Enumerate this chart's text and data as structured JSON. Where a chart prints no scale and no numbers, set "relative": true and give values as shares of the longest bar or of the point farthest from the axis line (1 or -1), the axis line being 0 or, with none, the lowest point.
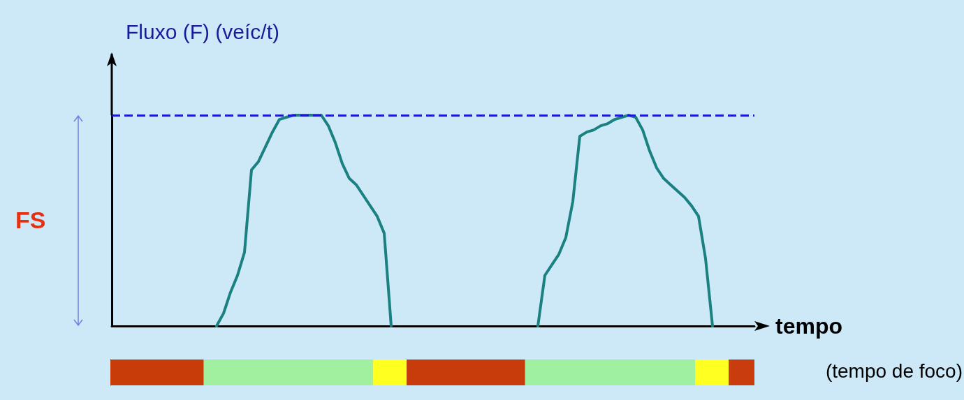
{
  "chart_data": [
    {
      "type": "line",
      "relative": true,
      "ylabel": "Fluxo (F) (veíc/t)",
      "xlabel": "tempo",
      "categories": [
        null,
        null,
        null,
        null,
        null,
        null,
        null,
        null,
        null,
        null,
        null,
        null,
        null,
        null,
        null,
        null,
        null,
        null,
        null,
        null,
        null,
        null,
        null,
        null,
        null,
        null,
        null,
        null,
        null,
        null,
        null,
        null,
        null,
        null,
        null,
        null,
        null,
        null,
        null,
        null,
        null,
        null,
        null,
        null,
        null,
        null,
        null,
        null,
        null,
        null,
        null,
        null,
        null,
        null,
        null,
        null,
        null,
        null,
        null,
        null,
        null,
        null,
        null,
        null,
        null,
        null,
        null,
        null,
        null,
        null,
        null,
        null,
        null,
        null,
        null,
        null,
        null,
        null,
        null,
        null,
        null,
        null,
        null,
        null,
        null,
        null,
        null,
        null,
        null,
        null,
        null,
        null,
        null
      ],
      "series": [
        {
          "color": "#1a8080",
          "values": [
            null,
            null,
            null,
            null,
            null,
            null,
            null,
            null,
            null,
            null,
            null,
            null,
            null,
            null,
            null,
            0,
            0.06,
            0.16,
            0.24,
            0.35,
            0.74,
            0.78,
            0.85,
            0.92,
            0.98,
            0.99,
            1,
            1,
            1,
            1,
            1,
            0.95,
            0.87,
            0.77,
            0.7,
            0.67,
            0.62,
            0.57,
            0.52,
            0.44,
            0,
            null,
            null,
            null,
            null,
            null,
            null,
            null,
            null,
            null,
            null,
            null,
            null,
            null,
            null,
            null,
            null,
            null,
            null,
            null,
            null,
            null,
            null,
            null,
            null,
            null,
            null,
            null,
            null,
            null,
            null,
            null,
            null,
            null,
            null,
            null,
            null,
            null,
            null,
            null,
            null,
            null,
            null,
            null,
            null,
            null,
            null,
            null,
            null,
            null,
            null,
            null,
            null
          ]
        },
        {
          "color": "#1a8080",
          "values": [
            null,
            null,
            null,
            null,
            null,
            null,
            null,
            null,
            null,
            null,
            null,
            null,
            null,
            null,
            null,
            null,
            null,
            null,
            null,
            null,
            null,
            null,
            null,
            null,
            null,
            null,
            null,
            null,
            null,
            null,
            null,
            null,
            null,
            null,
            null,
            null,
            null,
            null,
            null,
            null,
            null,
            null,
            null,
            null,
            null,
            null,
            null,
            null,
            null,
            null,
            null,
            null,
            null,
            null,
            null,
            null,
            null,
            null,
            null,
            null,
            null,
            0,
            0.24,
            0.29,
            0.34,
            0.42,
            0.59,
            0.9,
            0.92,
            0.93,
            0.95,
            0.96,
            0.98,
            0.99,
            1,
            0.99,
            0.93,
            0.83,
            0.75,
            0.7,
            0.67,
            0.64,
            0.61,
            0.57,
            0.52,
            0.32,
            0,
            null,
            null,
            null,
            null,
            null,
            null
          ]
        }
      ],
      "ref_lines": [
        {
          "axis": "y",
          "value": 1,
          "color": "#1a1ad0",
          "line_style": "dashed"
        }
      ],
      "annotations": [
        "FS"
      ],
      "marker": "none",
      "line_style": "solid"
    },
    {
      "type": "bar",
      "relative": true,
      "orientation": "horizontal",
      "stacked": true,
      "categories": [
        null
      ],
      "series": [
        {
          "color": "#c83c0a",
          "values": [
            0.145
          ]
        },
        {
          "color": "#a0f0a0",
          "values": [
            0.263
          ]
        },
        {
          "color": "#ffff20",
          "values": [
            0.052
          ]
        },
        {
          "color": "#c83c0c",
          "values": [
            0.184
          ]
        },
        {
          "color": "#a0f0a2",
          "values": [
            0.264
          ]
        },
        {
          "color": "#ffff22",
          "values": [
            0.052
          ]
        },
        {
          "color": "#c83c0e",
          "values": [
            0.04
          ]
        }
      ],
      "annotations": [
        "(tempo de foco)"
      ]
    }
  ]
}
